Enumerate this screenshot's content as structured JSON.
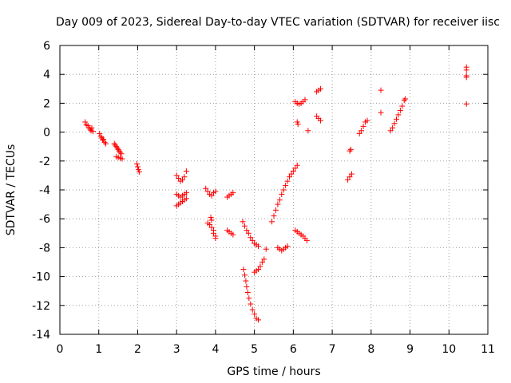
{
  "chart_data": {
    "type": "scatter",
    "title": "Day 009 of 2023, Sidereal Day-to-day VTEC variation (SDTVAR) for receiver iisc",
    "xlabel": "GPS time / hours",
    "ylabel": "SDTVAR / TECUs",
    "xlim": [
      0,
      11
    ],
    "ylim": [
      -14,
      6
    ],
    "x_ticks": [
      "0",
      "1",
      "2",
      "3",
      "4",
      "5",
      "6",
      "7",
      "8",
      "9",
      "10",
      "11"
    ],
    "y_ticks": [
      "-14",
      "-12",
      "-10",
      "-8",
      "-6",
      "-4",
      "-2",
      "0",
      "2",
      "4",
      "6"
    ],
    "grid": true,
    "marker": "+",
    "color": "#ff0000",
    "series": [
      {
        "points": [
          [
            0.65,
            0.7
          ],
          [
            0.68,
            0.5
          ],
          [
            0.72,
            0.45
          ],
          [
            0.75,
            0.3
          ],
          [
            0.78,
            0.2
          ],
          [
            0.8,
            0.1
          ],
          [
            0.82,
            0.3
          ],
          [
            0.85,
            0.05
          ],
          [
            1.02,
            -0.1
          ],
          [
            1.05,
            -0.3
          ],
          [
            1.08,
            -0.4
          ],
          [
            1.1,
            -0.55
          ],
          [
            1.12,
            -0.5
          ],
          [
            1.15,
            -0.7
          ],
          [
            1.18,
            -0.8
          ],
          [
            1.4,
            -0.8
          ],
          [
            1.42,
            -0.9
          ],
          [
            1.45,
            -1.0
          ],
          [
            1.48,
            -1.1
          ],
          [
            1.5,
            -1.2
          ],
          [
            1.52,
            -1.3
          ],
          [
            1.55,
            -1.4
          ],
          [
            1.58,
            -1.5
          ],
          [
            1.45,
            -1.7
          ],
          [
            1.5,
            -1.75
          ],
          [
            1.55,
            -1.8
          ],
          [
            1.6,
            -1.85
          ],
          [
            1.98,
            -2.2
          ],
          [
            2.0,
            -2.4
          ],
          [
            2.02,
            -2.6
          ],
          [
            2.04,
            -2.75
          ],
          [
            3.0,
            -3.0
          ],
          [
            3.05,
            -3.2
          ],
          [
            3.1,
            -3.4
          ],
          [
            3.15,
            -3.3
          ],
          [
            3.2,
            -3.1
          ],
          [
            3.25,
            -2.7
          ],
          [
            3.0,
            -4.3
          ],
          [
            3.05,
            -4.4
          ],
          [
            3.1,
            -4.5
          ],
          [
            3.15,
            -4.4
          ],
          [
            3.2,
            -4.3
          ],
          [
            3.25,
            -4.2
          ],
          [
            3.0,
            -5.1
          ],
          [
            3.05,
            -5.0
          ],
          [
            3.1,
            -4.9
          ],
          [
            3.15,
            -4.8
          ],
          [
            3.2,
            -4.7
          ],
          [
            3.25,
            -4.6
          ],
          [
            3.75,
            -3.9
          ],
          [
            3.8,
            -4.1
          ],
          [
            3.85,
            -4.3
          ],
          [
            3.9,
            -4.4
          ],
          [
            3.95,
            -4.2
          ],
          [
            4.0,
            -4.1
          ],
          [
            3.8,
            -6.3
          ],
          [
            3.85,
            -6.4
          ],
          [
            3.9,
            -6.6
          ],
          [
            3.95,
            -6.8
          ],
          [
            3.95,
            -7.0
          ],
          [
            4.0,
            -7.2
          ],
          [
            4.0,
            -7.35
          ],
          [
            3.88,
            -5.9
          ],
          [
            3.9,
            -6.1
          ],
          [
            4.3,
            -4.5
          ],
          [
            4.35,
            -4.4
          ],
          [
            4.4,
            -4.3
          ],
          [
            4.45,
            -4.2
          ],
          [
            4.3,
            -6.8
          ],
          [
            4.35,
            -6.9
          ],
          [
            4.4,
            -7.0
          ],
          [
            4.45,
            -7.1
          ],
          [
            4.7,
            -6.2
          ],
          [
            4.75,
            -6.5
          ],
          [
            4.8,
            -6.8
          ],
          [
            4.85,
            -7.0
          ],
          [
            4.9,
            -7.3
          ],
          [
            4.95,
            -7.5
          ],
          [
            5.0,
            -7.7
          ],
          [
            5.05,
            -7.8
          ],
          [
            5.1,
            -7.9
          ],
          [
            4.72,
            -9.5
          ],
          [
            4.75,
            -9.9
          ],
          [
            4.78,
            -10.3
          ],
          [
            4.8,
            -10.7
          ],
          [
            4.83,
            -11.1
          ],
          [
            4.86,
            -11.5
          ],
          [
            4.9,
            -11.9
          ],
          [
            4.95,
            -12.3
          ],
          [
            5.0,
            -12.6
          ],
          [
            5.05,
            -12.9
          ],
          [
            5.1,
            -13.0
          ],
          [
            5.0,
            -9.7
          ],
          [
            5.05,
            -9.6
          ],
          [
            5.1,
            -9.5
          ],
          [
            5.15,
            -9.3
          ],
          [
            5.2,
            -9.0
          ],
          [
            5.25,
            -8.8
          ],
          [
            5.3,
            -8.1
          ],
          [
            5.45,
            -6.2
          ],
          [
            5.5,
            -5.8
          ],
          [
            5.55,
            -5.4
          ],
          [
            5.6,
            -5.0
          ],
          [
            5.65,
            -4.7
          ],
          [
            5.7,
            -4.3
          ],
          [
            5.75,
            -4.0
          ],
          [
            5.8,
            -3.7
          ],
          [
            5.85,
            -3.4
          ],
          [
            5.9,
            -3.1
          ],
          [
            5.95,
            -2.9
          ],
          [
            6.0,
            -2.7
          ],
          [
            6.05,
            -2.5
          ],
          [
            6.1,
            -2.3
          ],
          [
            5.6,
            -8.0
          ],
          [
            5.65,
            -8.1
          ],
          [
            5.7,
            -8.2
          ],
          [
            5.75,
            -8.1
          ],
          [
            5.8,
            -8.0
          ],
          [
            5.85,
            -7.9
          ],
          [
            6.05,
            -6.8
          ],
          [
            6.1,
            -6.9
          ],
          [
            6.15,
            -7.0
          ],
          [
            6.2,
            -7.1
          ],
          [
            6.25,
            -7.2
          ],
          [
            6.3,
            -7.35
          ],
          [
            6.35,
            -7.5
          ],
          [
            6.05,
            2.1
          ],
          [
            6.1,
            2.0
          ],
          [
            6.15,
            1.95
          ],
          [
            6.2,
            2.0
          ],
          [
            6.25,
            2.1
          ],
          [
            6.3,
            2.25
          ],
          [
            6.1,
            0.7
          ],
          [
            6.12,
            0.55
          ],
          [
            6.38,
            0.1
          ],
          [
            6.6,
            2.8
          ],
          [
            6.65,
            2.9
          ],
          [
            6.7,
            3.0
          ],
          [
            6.6,
            1.1
          ],
          [
            6.65,
            0.95
          ],
          [
            6.7,
            0.8
          ],
          [
            7.4,
            -3.3
          ],
          [
            7.45,
            -3.1
          ],
          [
            7.5,
            -2.9
          ],
          [
            7.45,
            -1.3
          ],
          [
            7.48,
            -1.2
          ],
          [
            7.7,
            -0.1
          ],
          [
            7.75,
            0.1
          ],
          [
            7.8,
            0.4
          ],
          [
            7.85,
            0.7
          ],
          [
            7.9,
            0.8
          ],
          [
            8.25,
            2.9
          ],
          [
            8.25,
            1.35
          ],
          [
            8.5,
            0.1
          ],
          [
            8.55,
            0.3
          ],
          [
            8.6,
            0.6
          ],
          [
            8.65,
            0.9
          ],
          [
            8.7,
            1.2
          ],
          [
            8.75,
            1.5
          ],
          [
            8.8,
            1.8
          ],
          [
            8.85,
            2.2
          ],
          [
            8.88,
            2.3
          ],
          [
            10.45,
            4.5
          ],
          [
            10.45,
            4.3
          ],
          [
            10.45,
            3.9
          ],
          [
            10.45,
            3.8
          ],
          [
            10.45,
            1.95
          ]
        ]
      }
    ]
  }
}
